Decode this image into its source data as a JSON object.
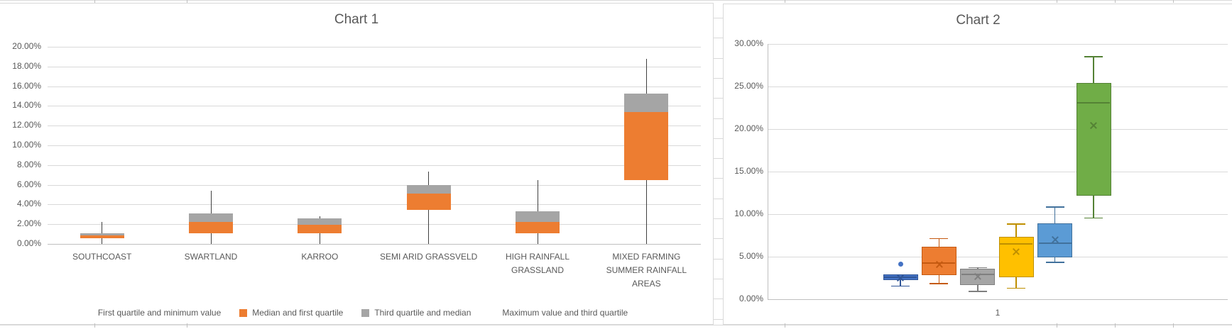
{
  "chart_data": [
    {
      "type": "boxplot",
      "render_style": "stacked-bar-boxplot",
      "title": "Chart 1",
      "units": "percent",
      "grid": true,
      "legend_position": "bottom",
      "y_axis": {
        "min": 0,
        "max": 20,
        "step": 2,
        "labels": [
          "0.00%",
          "2.00%",
          "4.00%",
          "6.00%",
          "8.00%",
          "10.00%",
          "12.00%",
          "14.00%",
          "16.00%",
          "18.00%",
          "20.00%"
        ]
      },
      "colors": {
        "q1_median_fill": "#ED7D31",
        "median_q3_fill": "#A5A5A5",
        "whisker": "#404040"
      },
      "legend": [
        {
          "label": "First quartile and minimum value",
          "color": ""
        },
        {
          "label": "Median and first quartile",
          "color": "#ED7D31"
        },
        {
          "label": "Third quartile and median",
          "color": "#A5A5A5"
        },
        {
          "label": "Maximum value and third quartile",
          "color": ""
        }
      ],
      "categories": [
        {
          "label": "SOUTHCOAST",
          "label_lines": [
            "SOUTHCOAST"
          ],
          "min": 0,
          "q1": 0.6,
          "median": 0.85,
          "q3": 1.05,
          "max": 2.25
        },
        {
          "label": "SWARTLAND",
          "label_lines": [
            "SWARTLAND"
          ],
          "min": 0,
          "q1": 1.1,
          "median": 2.25,
          "q3": 3.1,
          "max": 5.4
        },
        {
          "label": "KARROO",
          "label_lines": [
            "KARROO"
          ],
          "min": 0,
          "q1": 1.1,
          "median": 1.95,
          "q3": 2.6,
          "max": 2.8
        },
        {
          "label": "SEMI ARID GRASSVELD",
          "label_lines": [
            "SEMI ARID GRASSVELD"
          ],
          "min": 0,
          "q1": 3.45,
          "median": 5.1,
          "q3": 6.0,
          "max": 7.35
        },
        {
          "label": "HIGH RAINFALL GRASSLAND",
          "label_lines": [
            "HIGH RAINFALL",
            "GRASSLAND"
          ],
          "min": 0,
          "q1": 1.1,
          "median": 2.2,
          "q3": 3.3,
          "max": 6.5
        },
        {
          "label": "MIXED FARMING SUMMER RAINFALL AREAS",
          "label_lines": [
            "MIXED FARMING",
            "SUMMER RAINFALL",
            "AREAS"
          ],
          "min": 0,
          "q1": 6.5,
          "median": 13.4,
          "q3": 15.25,
          "max": 18.8
        }
      ]
    },
    {
      "type": "box-whisker",
      "title": "Chart 2",
      "units": "percent",
      "grid": true,
      "x_axis": {
        "tick_labels": [
          "1"
        ]
      },
      "y_axis": {
        "min": 0,
        "max": 30,
        "step": 5,
        "labels": [
          "0.00%",
          "5.00%",
          "10.00%",
          "15.00%",
          "20.00%",
          "25.00%",
          "30.00%"
        ]
      },
      "series": [
        {
          "color_name": "blue",
          "fill": "#4472C4",
          "stroke": "#2F5597",
          "min": 1.6,
          "q1": 2.25,
          "median": 2.6,
          "q3": 2.9,
          "max": 2.9,
          "mean": 2.5,
          "outliers": [
            4.1
          ]
        },
        {
          "color_name": "orange",
          "fill": "#ED7D31",
          "stroke": "#C55A11",
          "min": 1.9,
          "q1": 2.8,
          "median": 4.25,
          "q3": 6.2,
          "max": 7.1,
          "mean": 4.1,
          "outliers": []
        },
        {
          "color_name": "gray",
          "fill": "#A5A5A5",
          "stroke": "#7F7F7F",
          "min": 1.0,
          "q1": 1.65,
          "median": 2.9,
          "q3": 3.6,
          "max": 3.7,
          "mean": 2.65,
          "outliers": []
        },
        {
          "color_name": "yellow",
          "fill": "#FFC000",
          "stroke": "#BF8F00",
          "min": 1.35,
          "q1": 2.6,
          "median": 6.5,
          "q3": 7.3,
          "max": 8.8,
          "mean": 5.6,
          "outliers": []
        },
        {
          "color_name": "light-blue",
          "fill": "#5B9BD5",
          "stroke": "#41719C",
          "min": 4.4,
          "q1": 4.9,
          "median": 6.6,
          "q3": 8.9,
          "max": 10.8,
          "mean": 7.0,
          "outliers": []
        },
        {
          "color_name": "green",
          "fill": "#70AD47",
          "stroke": "#548235",
          "min": 9.6,
          "q1": 12.2,
          "median": 23.1,
          "q3": 25.4,
          "max": 28.5,
          "mean": 20.4,
          "outliers": []
        }
      ]
    }
  ]
}
